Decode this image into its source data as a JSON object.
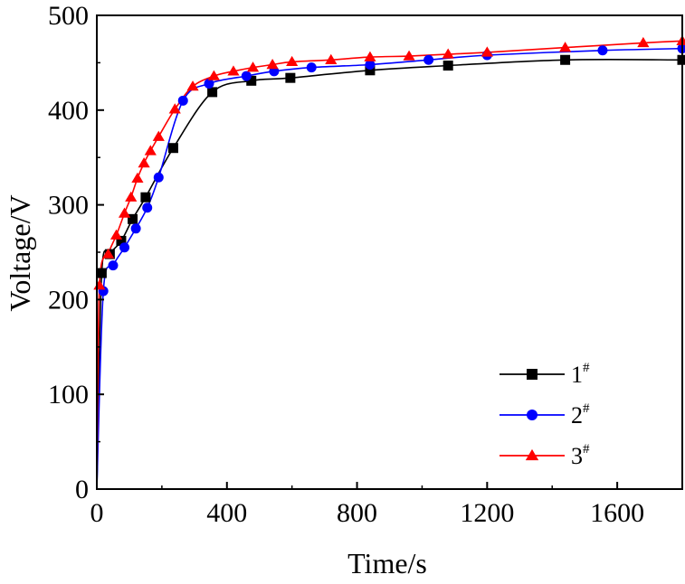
{
  "chart_data": {
    "type": "line",
    "title": "",
    "xlabel": "Time/s",
    "ylabel": "Voltage/V",
    "xlim": [
      0,
      1800
    ],
    "ylim": [
      0,
      500
    ],
    "xticks": [
      0,
      400,
      800,
      1200,
      1600
    ],
    "yticks": [
      0,
      100,
      200,
      300,
      400,
      500
    ],
    "grid": false,
    "legend_position": "bottom-right",
    "series": [
      {
        "name": "1",
        "name_superscript": "#",
        "color": "#000000",
        "marker": "square",
        "x": [
          0,
          15,
          40,
          75,
          110,
          150,
          235,
          355,
          475,
          595,
          840,
          1080,
          1440,
          1800
        ],
        "y": [
          0,
          228,
          248,
          262,
          285,
          308,
          360,
          419,
          431,
          434,
          442,
          447,
          453,
          453
        ]
      },
      {
        "name": "2",
        "name_superscript": "#",
        "color": "#0000ff",
        "marker": "circle",
        "x": [
          0,
          20,
          50,
          85,
          120,
          155,
          190,
          265,
          345,
          460,
          545,
          660,
          840,
          1020,
          1200,
          1555,
          1800
        ],
        "y": [
          0,
          209,
          236,
          255,
          275,
          297,
          329,
          410,
          428,
          436,
          441,
          445,
          448,
          453,
          458,
          463,
          465
        ]
      },
      {
        "name": "3",
        "name_superscript": "#",
        "color": "#ff0000",
        "marker": "triangle",
        "x": [
          0,
          8,
          35,
          60,
          85,
          105,
          125,
          145,
          165,
          190,
          240,
          295,
          360,
          420,
          480,
          540,
          600,
          720,
          840,
          960,
          1080,
          1200,
          1440,
          1680,
          1800
        ],
        "y": [
          0,
          215,
          248,
          268,
          291,
          308,
          328,
          344,
          357,
          372,
          401,
          425,
          436,
          441,
          445,
          448,
          451,
          453,
          456,
          457,
          459,
          461,
          466,
          471,
          473
        ]
      }
    ]
  }
}
